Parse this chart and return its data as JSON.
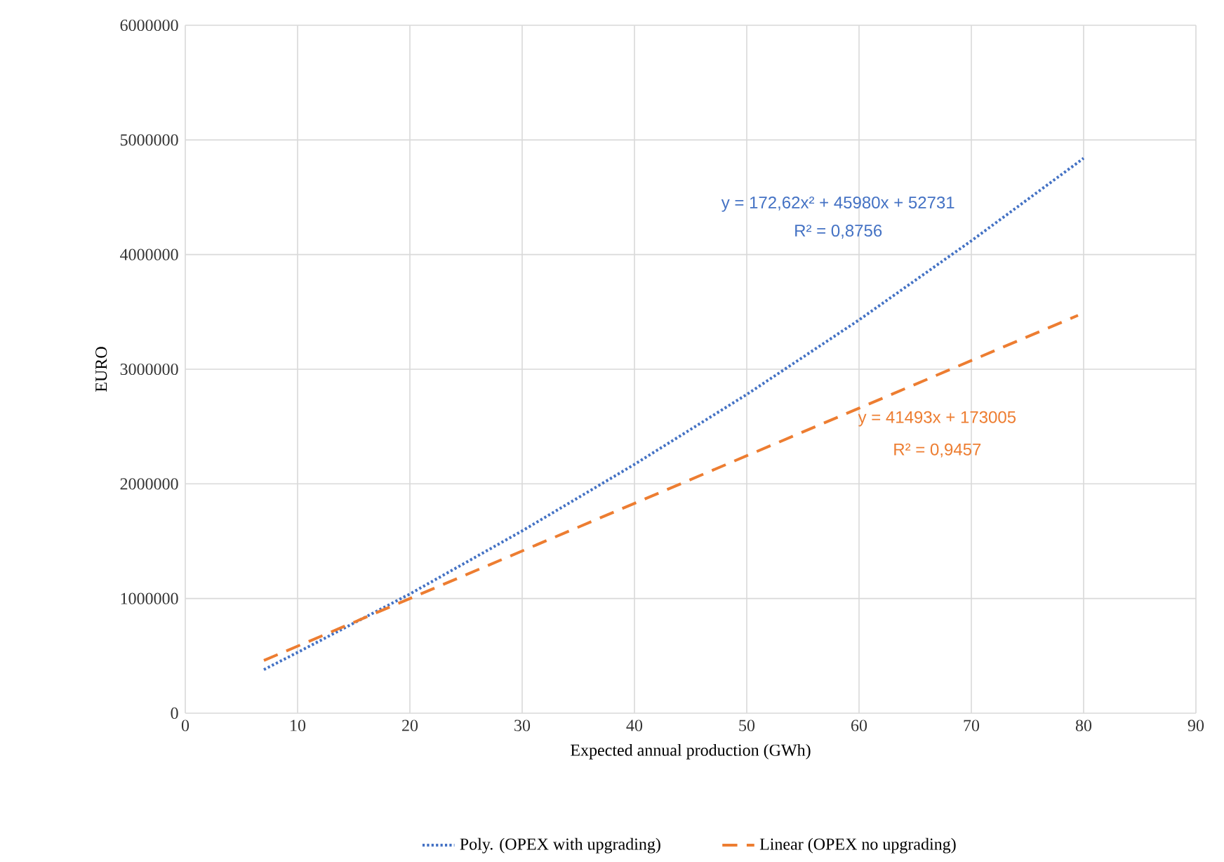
{
  "chart_data": {
    "type": "line",
    "xlabel": "Expected  annual production (GWh)",
    "ylabel": "EURO",
    "xlim": [
      0,
      90
    ],
    "xticks": [
      0,
      10,
      20,
      30,
      40,
      50,
      60,
      70,
      80,
      90
    ],
    "ylim": [
      0,
      6000000
    ],
    "yticks": [
      0,
      1000000,
      2000000,
      3000000,
      4000000,
      5000000,
      6000000
    ],
    "grid": true,
    "legend": "bottom",
    "marker": "none",
    "series": [
      {
        "name": "Poly. (OPEX with upgrading)",
        "color": "#4472c4",
        "line_style": "dotted",
        "x": [
          7,
          10,
          20,
          30,
          40,
          50,
          60,
          70,
          80
        ],
        "values": [
          380000,
          530000,
          1040000,
          1590000,
          2170000,
          2780000,
          3430000,
          4120000,
          4840000
        ]
      },
      {
        "name": "Linear (OPEX no upgrading)",
        "color": "#ed7d31",
        "line_style": "dashed",
        "x": [
          7,
          40,
          79.5
        ],
        "values": [
          460000,
          1830000,
          3470000
        ]
      }
    ],
    "annotations": [
      "y = 172,62x² + 45980x + 52731",
      "R² = 0,8756",
      "y = 41493x + 173005",
      "R² = 0,9457"
    ]
  }
}
